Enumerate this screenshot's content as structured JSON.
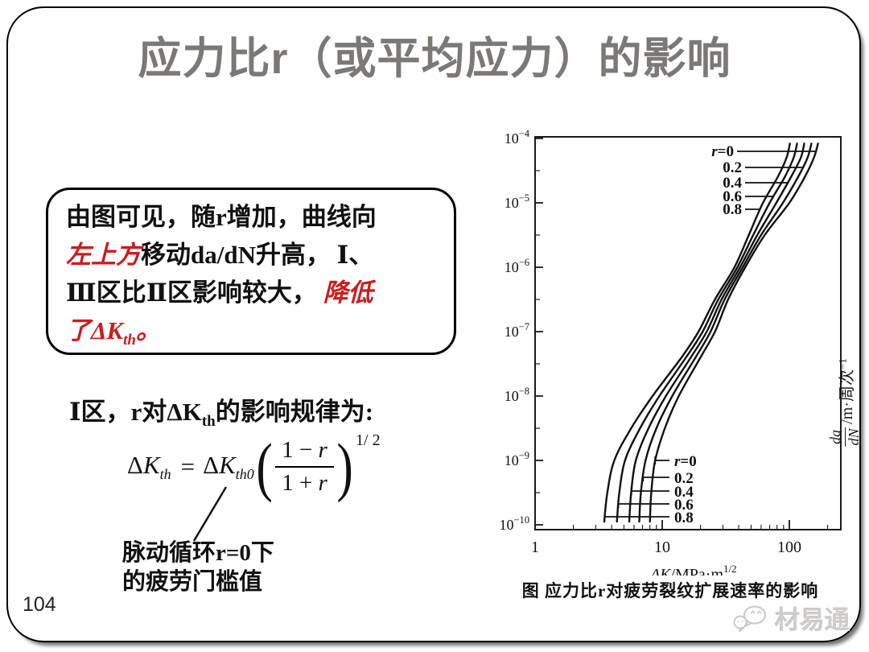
{
  "slide": {
    "title": "应力比r（或平均应力）的影响",
    "page_number": "104",
    "logo_text": "材易通"
  },
  "note_box": {
    "line1": "由图可见，随r增加，曲线向",
    "line2_red": "左上方",
    "line2_black": "移动da/dN升高， Ⅰ、",
    "line3_black": "Ⅲ区比Ⅱ区影响较大， ",
    "line3_red": "降低",
    "line4_red_pre": "了ΔK",
    "line4_red_sub": "th",
    "line4_red_post": "。"
  },
  "intro": {
    "pre": "Ⅰ区，r对ΔK",
    "sub": "th",
    "post": "的影响规律为:"
  },
  "formula": {
    "delta": "Δ",
    "kvar": "K",
    "lhs_sub": "th",
    "equals": "=",
    "rhs_sub": "th0",
    "paren_open": "(",
    "paren_close": ")",
    "num_pre": "1 − ",
    "den_pre": "1 + ",
    "var": "r",
    "exponent": "1/ 2"
  },
  "annotation": {
    "line1": "脉动循环r=0下",
    "line2": "的疲劳门槛值"
  },
  "chart_caption": "图 应力比r对疲劳裂纹扩展速率的影响",
  "chart_data": {
    "type": "line",
    "title": "",
    "xlabel_var": "ΔK",
    "xlabel_rest": "/MPa·m",
    "xlabel_sup": "1/2",
    "ylabel_num": "da",
    "ylabel_den": "dN",
    "ylabel_rest": "/m·周次",
    "ylabel_sup": "−1",
    "x_scale": "log",
    "y_scale": "log",
    "x_ticks": [
      1,
      10,
      100
    ],
    "y_tick_exponents": [
      -4,
      -5,
      -6,
      -7,
      -8,
      -9,
      -10
    ],
    "x_range": [
      1,
      250
    ],
    "y_range": [
      1e-10,
      0.0001
    ],
    "legend_note": "curves labeled by stress ratio r at top and bottom",
    "top_labels": [
      "r=0",
      "0.2",
      "0.4",
      "0.6",
      "0.8"
    ],
    "bottom_labels": [
      "r=0",
      "0.2",
      "0.4",
      "0.6",
      "0.8"
    ],
    "series": [
      {
        "name": "r=0",
        "r": 0.0,
        "points": [
          [
            8.0,
            -9.95
          ],
          [
            8.2,
            -9.5
          ],
          [
            8.8,
            -9.0
          ],
          [
            10.5,
            -8.5
          ],
          [
            13.5,
            -8.0
          ],
          [
            20,
            -7.4
          ],
          [
            26,
            -7.0
          ],
          [
            33,
            -6.5
          ],
          [
            45,
            -6.0
          ],
          [
            64,
            -5.5
          ],
          [
            100,
            -5.0
          ],
          [
            132,
            -4.6
          ],
          [
            156,
            -4.3
          ],
          [
            168,
            -4.08
          ]
        ]
      },
      {
        "name": "0.2",
        "r": 0.2,
        "points": [
          [
            6.6,
            -9.95
          ],
          [
            6.8,
            -9.5
          ],
          [
            7.4,
            -9.0
          ],
          [
            9.0,
            -8.5
          ],
          [
            12,
            -8.0
          ],
          [
            18.3,
            -7.4
          ],
          [
            24,
            -7.0
          ],
          [
            31,
            -6.5
          ],
          [
            43,
            -6.0
          ],
          [
            60,
            -5.5
          ],
          [
            89,
            -5.0
          ],
          [
            117,
            -4.6
          ],
          [
            139,
            -4.3
          ],
          [
            149,
            -4.08
          ]
        ]
      },
      {
        "name": "0.4",
        "r": 0.4,
        "points": [
          [
            5.5,
            -9.95
          ],
          [
            5.7,
            -9.5
          ],
          [
            6.2,
            -9.0
          ],
          [
            7.8,
            -8.5
          ],
          [
            10.7,
            -8.0
          ],
          [
            16.8,
            -7.4
          ],
          [
            22.4,
            -7.0
          ],
          [
            29.3,
            -6.5
          ],
          [
            41,
            -6.0
          ],
          [
            56,
            -5.5
          ],
          [
            79,
            -5.0
          ],
          [
            103,
            -4.6
          ],
          [
            123,
            -4.3
          ],
          [
            131,
            -4.08
          ]
        ]
      },
      {
        "name": "0.6",
        "r": 0.6,
        "points": [
          [
            4.4,
            -9.95
          ],
          [
            4.6,
            -9.5
          ],
          [
            5.1,
            -9.0
          ],
          [
            6.7,
            -8.5
          ],
          [
            9.5,
            -8.0
          ],
          [
            15.4,
            -7.4
          ],
          [
            20.8,
            -7.0
          ],
          [
            27.6,
            -6.5
          ],
          [
            39,
            -6.0
          ],
          [
            52,
            -5.5
          ],
          [
            70,
            -5.0
          ],
          [
            92,
            -4.6
          ],
          [
            108,
            -4.3
          ],
          [
            115,
            -4.08
          ]
        ]
      },
      {
        "name": "0.8",
        "r": 0.8,
        "points": [
          [
            3.5,
            -9.95
          ],
          [
            3.7,
            -9.5
          ],
          [
            4.2,
            -9.0
          ],
          [
            5.7,
            -8.5
          ],
          [
            8.4,
            -8.0
          ],
          [
            14.2,
            -7.4
          ],
          [
            19.3,
            -7.0
          ],
          [
            26,
            -6.5
          ],
          [
            37,
            -6.0
          ],
          [
            48,
            -5.5
          ],
          [
            62,
            -5.0
          ],
          [
            81,
            -4.6
          ],
          [
            95,
            -4.3
          ],
          [
            101,
            -4.08
          ]
        ]
      }
    ]
  }
}
